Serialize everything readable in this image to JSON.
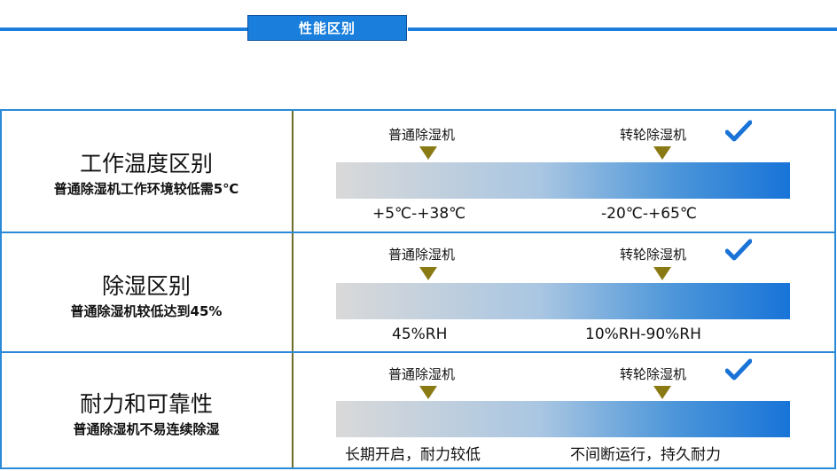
{
  "header": {
    "title": "性能区别"
  },
  "rows": [
    {
      "title": "工作温度区别",
      "subtitle": "普通除湿机工作环境较低需5℃",
      "left_label": "普通除湿机",
      "right_label": "转轮除湿机",
      "left_value": "+5℃-+38℃",
      "right_value": "-20℃-+65℃"
    },
    {
      "title": "除湿区别",
      "subtitle": "普通除湿机较低达到45%",
      "left_label": "普通除湿机",
      "right_label": "转轮除湿机",
      "left_value": "45%RH",
      "right_value": "10%RH-90%RH"
    },
    {
      "title": "耐力和可靠性",
      "subtitle": "普通除湿机不易连续除湿",
      "left_label": "普通除湿机",
      "right_label": "转轮除湿机",
      "left_value": "长期开启，耐力较低",
      "right_value": "不间断运行，持久耐力"
    }
  ],
  "colors": {
    "accent": "#1a7fdc",
    "marker": "#8a7a14",
    "check": "#1a73d6"
  },
  "icons": {
    "marker": "triangle-down-icon",
    "check": "checkmark-icon"
  }
}
